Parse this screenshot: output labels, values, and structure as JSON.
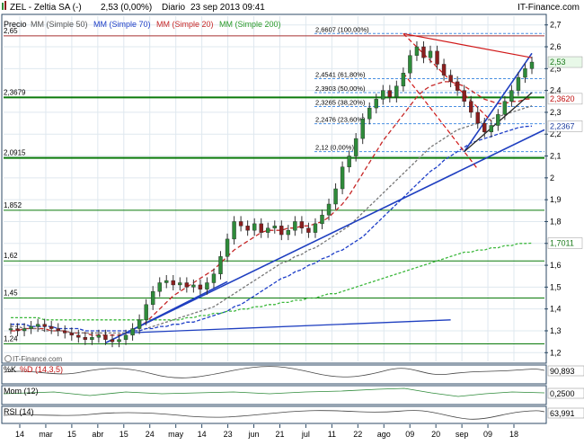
{
  "header": {
    "ticker": "ZEL - Zeltia SA (-)",
    "last_value": "2,53 (0,00%)",
    "period": "Diario",
    "datetime": "23 sep 2013 09:41",
    "brand": "IT-Finance.com",
    "watermark": "IT-Finance.com"
  },
  "legend": {
    "price": "Precio",
    "ma50": "MM (Simple 50)",
    "ma70": "MM (Simple 70)",
    "ma20": "MM (Simple 20)",
    "ma200": "MM (Simple 200)"
  },
  "colors": {
    "price_up": "#2e8b3a",
    "price_down": "#8b1e1e",
    "ma20": "#c62828",
    "ma50": "#777777",
    "ma70": "#1e3fc8",
    "ma200": "#3cb83c",
    "trend_line": "#1f3fc0",
    "channel_red": "#d01818",
    "fib_line": "#4a90e2",
    "support_line": "#0a7a0a",
    "grid": "#dfe8ef",
    "frame": "#2c4a66",
    "tag_green_bg": "#e8f8e8",
    "tag_green_text": "#1a7a1a",
    "tag_red_text": "#c01010",
    "tag_blue_text": "#1f3fa0"
  },
  "support_levels": [
    {
      "label": "2,65"
    },
    {
      "label": "2,3679"
    },
    {
      "label": "2,0915"
    },
    {
      "label": "1,852"
    },
    {
      "label": "1,62"
    },
    {
      "label": "1,45"
    },
    {
      "label": "1,24"
    }
  ],
  "fibonacci": [
    {
      "label": "2,6607 (100,00%)",
      "value": 2.6607
    },
    {
      "label": "2,4541 (61,80%)",
      "value": 2.4541
    },
    {
      "label": "2,3903 (50,00%)",
      "value": 2.3903
    },
    {
      "label": "2,3265 (38,20%)",
      "value": 2.3265
    },
    {
      "label": "2,2476 (23,60%)",
      "value": 2.2476
    },
    {
      "label": "2,12 (0,00%)",
      "value": 2.12
    }
  ],
  "right_tags": {
    "price": "2,53",
    "ma20": "2,3620",
    "ma70": "2,2367",
    "ma200": "1,7011"
  },
  "indicators": [
    {
      "name": "%K",
      "params": "%D (14,3,5)",
      "label": "%K",
      "value": "90,893"
    },
    {
      "name": "Mom (12)",
      "label": "Mom (12)",
      "value": "0,2500"
    },
    {
      "name": "RSI (14)",
      "label": "RSI (14)",
      "value": "63,991"
    }
  ],
  "chart_data": {
    "type": "candlestick",
    "title": "ZEL - Zeltia SA (-)",
    "period": "Diario",
    "y_ticks": [
      "2,7",
      "2,6",
      "2,5",
      "2,4",
      "2,3",
      "2,2",
      "2,1",
      "2",
      "1,9",
      "1,8",
      "1,7",
      "1,6",
      "1,5",
      "1,4",
      "1,3",
      "1,2"
    ],
    "ylim": [
      1.16,
      2.74
    ],
    "x_ticks": [
      "14",
      "mar",
      "15",
      "abr",
      "15",
      "24",
      "may",
      "14",
      "23",
      "jun",
      "21",
      "jul",
      "11",
      "22",
      "ago",
      "09",
      "20",
      "sep",
      "09",
      "18"
    ],
    "series": [
      {
        "name": "Precio",
        "type": "close",
        "values": [
          1.31,
          1.3,
          1.31,
          1.32,
          1.33,
          1.32,
          1.31,
          1.3,
          1.29,
          1.28,
          1.27,
          1.26,
          1.27,
          1.28,
          1.26,
          1.25,
          1.26,
          1.28,
          1.31,
          1.35,
          1.42,
          1.48,
          1.52,
          1.53,
          1.51,
          1.52,
          1.5,
          1.51,
          1.49,
          1.52,
          1.56,
          1.64,
          1.72,
          1.8,
          1.78,
          1.76,
          1.79,
          1.75,
          1.77,
          1.78,
          1.74,
          1.76,
          1.8,
          1.77,
          1.75,
          1.79,
          1.83,
          1.88,
          1.95,
          2.05,
          2.1,
          2.18,
          2.27,
          2.32,
          2.36,
          2.4,
          2.37,
          2.42,
          2.48,
          2.56,
          2.6,
          2.55,
          2.58,
          2.52,
          2.47,
          2.44,
          2.4,
          2.35,
          2.3,
          2.25,
          2.21,
          2.24,
          2.29,
          2.35,
          2.4,
          2.46,
          2.5,
          2.53
        ]
      },
      {
        "name": "MM (Simple 20)",
        "values": [
          1.3,
          1.3,
          1.31,
          1.31,
          1.31,
          1.31,
          1.3,
          1.3,
          1.3,
          1.29,
          1.29,
          1.29,
          1.28,
          1.28,
          1.28,
          1.28,
          1.28,
          1.29,
          1.3,
          1.32,
          1.34,
          1.37,
          1.4,
          1.43,
          1.46,
          1.48,
          1.5,
          1.52,
          1.54,
          1.56,
          1.58,
          1.61,
          1.64,
          1.67,
          1.69,
          1.71,
          1.73,
          1.75,
          1.76,
          1.76,
          1.76,
          1.77,
          1.77,
          1.78,
          1.78,
          1.79,
          1.8,
          1.82,
          1.85,
          1.88,
          1.92,
          1.97,
          2.02,
          2.07,
          2.12,
          2.17,
          2.21,
          2.25,
          2.29,
          2.33,
          2.37,
          2.4,
          2.42,
          2.43,
          2.44,
          2.44,
          2.43,
          2.42,
          2.4,
          2.38,
          2.36,
          2.35,
          2.34,
          2.34,
          2.35,
          2.35,
          2.36,
          2.362
        ]
      },
      {
        "name": "MM (Simple 50)",
        "values": [
          1.32,
          1.32,
          1.31,
          1.31,
          1.31,
          1.3,
          1.3,
          1.3,
          1.3,
          1.29,
          1.29,
          1.29,
          1.29,
          1.29,
          1.29,
          1.29,
          1.29,
          1.29,
          1.3,
          1.3,
          1.31,
          1.32,
          1.33,
          1.34,
          1.35,
          1.36,
          1.37,
          1.38,
          1.39,
          1.4,
          1.41,
          1.43,
          1.45,
          1.47,
          1.49,
          1.51,
          1.53,
          1.55,
          1.57,
          1.59,
          1.61,
          1.62,
          1.64,
          1.65,
          1.67,
          1.68,
          1.7,
          1.72,
          1.74,
          1.76,
          1.78,
          1.81,
          1.84,
          1.87,
          1.9,
          1.93,
          1.96,
          1.99,
          2.02,
          2.05,
          2.08,
          2.11,
          2.14,
          2.16,
          2.18,
          2.2,
          2.22,
          2.23,
          2.24,
          2.25,
          2.26,
          2.27,
          2.28,
          2.29,
          2.3,
          2.31,
          2.32,
          2.33
        ]
      },
      {
        "name": "MM (Simple 70)",
        "values": [
          1.33,
          1.33,
          1.33,
          1.32,
          1.32,
          1.32,
          1.32,
          1.31,
          1.31,
          1.31,
          1.31,
          1.3,
          1.3,
          1.3,
          1.3,
          1.3,
          1.3,
          1.3,
          1.3,
          1.3,
          1.31,
          1.31,
          1.32,
          1.32,
          1.33,
          1.33,
          1.34,
          1.34,
          1.35,
          1.36,
          1.37,
          1.38,
          1.39,
          1.41,
          1.42,
          1.44,
          1.46,
          1.48,
          1.5,
          1.52,
          1.54,
          1.55,
          1.57,
          1.58,
          1.6,
          1.61,
          1.63,
          1.64,
          1.66,
          1.67,
          1.69,
          1.71,
          1.73,
          1.76,
          1.79,
          1.82,
          1.85,
          1.88,
          1.91,
          1.94,
          1.97,
          2.0,
          2.03,
          2.05,
          2.08,
          2.1,
          2.12,
          2.14,
          2.16,
          2.17,
          2.18,
          2.19,
          2.2,
          2.21,
          2.22,
          2.23,
          2.235,
          2.2367
        ]
      },
      {
        "name": "MM (Simple 200)",
        "values": [
          1.36,
          1.36,
          1.36,
          1.36,
          1.36,
          1.35,
          1.35,
          1.35,
          1.35,
          1.35,
          1.35,
          1.35,
          1.35,
          1.35,
          1.35,
          1.35,
          1.35,
          1.35,
          1.35,
          1.35,
          1.35,
          1.35,
          1.35,
          1.35,
          1.35,
          1.35,
          1.36,
          1.36,
          1.37,
          1.37,
          1.38,
          1.38,
          1.39,
          1.39,
          1.4,
          1.4,
          1.41,
          1.41,
          1.42,
          1.42,
          1.43,
          1.43,
          1.44,
          1.44,
          1.45,
          1.45,
          1.46,
          1.47,
          1.47,
          1.48,
          1.49,
          1.5,
          1.51,
          1.52,
          1.53,
          1.54,
          1.55,
          1.56,
          1.57,
          1.58,
          1.59,
          1.6,
          1.61,
          1.62,
          1.63,
          1.64,
          1.65,
          1.66,
          1.66,
          1.67,
          1.67,
          1.68,
          1.68,
          1.69,
          1.69,
          1.7,
          1.7,
          1.7011
        ]
      }
    ],
    "grid": true
  }
}
